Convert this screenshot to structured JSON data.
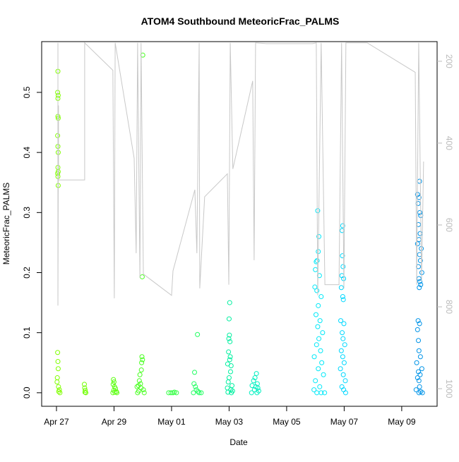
{
  "chart_data": {
    "type": "scatter",
    "title": "ATOM4 Southbound MeteoricFrac_PALMS",
    "xlabel": "Date",
    "ylabel": "MeteoricFrac_PALMS",
    "xlim": [
      -0.515,
      13.23
    ],
    "ylim": [
      -0.0225,
      0.5845
    ],
    "y2lim": [
      1043,
      152
    ],
    "xticks": [
      {
        "value": 0,
        "label": "Apr 27"
      },
      {
        "value": 2,
        "label": "Apr 29"
      },
      {
        "value": 4,
        "label": "May 01"
      },
      {
        "value": 6,
        "label": "May 03"
      },
      {
        "value": 8,
        "label": "May 05"
      },
      {
        "value": 10,
        "label": "May 07"
      },
      {
        "value": 12,
        "label": "May 09"
      }
    ],
    "yticks": [
      {
        "value": 0,
        "label": "0.0"
      },
      0.1,
      0.2,
      0.3,
      0.4,
      0.5
    ],
    "y2ticks": [
      200,
      400,
      600,
      800,
      1000
    ],
    "series": [
      {
        "color": "#80ff00",
        "x": [
          0.05,
          0.04,
          0.06,
          0.05,
          0.05,
          0.06,
          0.04,
          0.05,
          0.06,
          0.05,
          0.06,
          0.04,
          0.05,
          0.06,
          0.04,
          0.05,
          0.06,
          0.03,
          0.02,
          0.07,
          0.1,
          0.08,
          0.12
        ],
        "values": [
          0.535,
          0.5,
          0.495,
          0.49,
          0.46,
          0.457,
          0.428,
          0.41,
          0.4,
          0.375,
          0.368,
          0.365,
          0.36,
          0.345,
          0.067,
          0.052,
          0.04,
          0.025,
          0.018,
          0.01,
          0.005,
          0.002,
          0
        ]
      },
      {
        "color": "#70ff00",
        "x": [
          0.97,
          0.98,
          1.0,
          0.99,
          1.02
        ],
        "values": [
          0.014,
          0.008,
          0.004,
          0.001,
          0
        ]
      },
      {
        "color": "#5cff10",
        "x": [
          1.98,
          2.0,
          1.97,
          2.02,
          2.05,
          1.99,
          2.08,
          1.96,
          2.1,
          2.03
        ],
        "values": [
          0.022,
          0.018,
          0.014,
          0.01,
          0.007,
          0.004,
          0.002,
          0,
          0,
          0.001
        ]
      },
      {
        "color": "#48ff20",
        "x": [
          3.0,
          2.98,
          2.97,
          2.99,
          2.96,
          2.95,
          2.9,
          2.88,
          2.92,
          2.85,
          2.8,
          2.94,
          3.02,
          2.86,
          2.82,
          3.05
        ],
        "values": [
          0.562,
          0.193,
          0.06,
          0.055,
          0.05,
          0.038,
          0.03,
          0.02,
          0.015,
          0.012,
          0.01,
          0.008,
          0.005,
          0.003,
          0,
          0
        ]
      },
      {
        "color": "#30ff40",
        "x": [
          3.9,
          3.98,
          4.05,
          4.1,
          4.17
        ],
        "values": [
          0,
          0,
          0,
          0.001,
          0
        ]
      },
      {
        "color": "#20ff60",
        "x": [
          4.9,
          4.8,
          4.78,
          4.83,
          4.86,
          4.92,
          4.76,
          4.96,
          5.03
        ],
        "values": [
          0.097,
          0.034,
          0.015,
          0.01,
          0.005,
          0.002,
          0,
          0,
          0
        ]
      },
      {
        "color": "#00f0a0",
        "x": [
          6.02,
          6.0,
          6.01,
          5.99,
          6.03,
          5.98,
          6.04,
          6.02,
          5.95,
          6.07,
          6.05,
          6.0,
          5.97,
          6.1,
          5.94,
          6.06,
          6.12,
          5.96,
          6.08
        ],
        "values": [
          0.15,
          0.123,
          0.096,
          0.09,
          0.085,
          0.068,
          0.06,
          0.055,
          0.048,
          0.045,
          0.035,
          0.025,
          0.018,
          0.012,
          0.008,
          0.005,
          0.003,
          0.001,
          0
        ]
      },
      {
        "color": "#00f0c0",
        "x": [
          6.95,
          6.9,
          6.85,
          6.98,
          6.8,
          6.93,
          7.0,
          6.88,
          7.03,
          6.78,
          6.97
        ],
        "values": [
          0.032,
          0.025,
          0.02,
          0.015,
          0.012,
          0.01,
          0.008,
          0.005,
          0.003,
          0,
          0
        ]
      },
      {
        "color": "#00e8f8",
        "x": [
          9.08,
          9.12,
          9.1,
          9.06,
          9.03,
          9.0,
          9.14,
          8.98,
          9.05,
          9.2,
          9.1,
          9.02,
          9.16,
          9.08,
          9.25,
          9.12,
          9.04,
          9.18,
          8.96,
          9.22,
          9.1,
          9.28,
          9.0,
          9.15,
          8.95,
          9.05,
          9.2,
          9.32
        ],
        "values": [
          0.303,
          0.26,
          0.235,
          0.22,
          0.218,
          0.205,
          0.195,
          0.176,
          0.17,
          0.16,
          0.145,
          0.13,
          0.12,
          0.11,
          0.1,
          0.09,
          0.08,
          0.07,
          0.06,
          0.05,
          0.04,
          0.03,
          0.02,
          0.01,
          0.005,
          0,
          0,
          0
        ]
      },
      {
        "color": "#00d8ff",
        "x": [
          9.95,
          9.93,
          9.94,
          9.96,
          9.92,
          9.98,
          9.9,
          9.95,
          9.97,
          9.88,
          9.99,
          9.93,
          9.96,
          10.02,
          9.9,
          9.95,
          10.0,
          9.87,
          9.97,
          10.04,
          9.92,
          9.98,
          10.05
        ],
        "values": [
          0.278,
          0.27,
          0.228,
          0.21,
          0.195,
          0.19,
          0.175,
          0.16,
          0.155,
          0.12,
          0.115,
          0.1,
          0.09,
          0.08,
          0.07,
          0.06,
          0.05,
          0.04,
          0.03,
          0.02,
          0.01,
          0.005,
          0
        ]
      },
      {
        "color": "#0094e8",
        "x": [
          12.62,
          12.55,
          12.6,
          12.57,
          12.63,
          12.66,
          12.58,
          12.64,
          12.6,
          12.55,
          12.68,
          12.62,
          12.65,
          12.58,
          12.7,
          12.6,
          12.63,
          12.66,
          12.61,
          12.57,
          12.62,
          12.55,
          12.58,
          12.6,
          12.65,
          12.52,
          12.7,
          12.58,
          12.64,
          12.55,
          12.6,
          12.62,
          12.5,
          12.66,
          12.6,
          12.72
        ],
        "values": [
          0.352,
          0.33,
          0.325,
          0.315,
          0.3,
          0.295,
          0.28,
          0.265,
          0.255,
          0.248,
          0.24,
          0.23,
          0.22,
          0.21,
          0.2,
          0.19,
          0.185,
          0.18,
          0.175,
          0.12,
          0.115,
          0.105,
          0.087,
          0.07,
          0.06,
          0.05,
          0.04,
          0.035,
          0.03,
          0.025,
          0.02,
          0.01,
          0.005,
          0.002,
          0,
          0
        ]
      },
      {
        "type": "line",
        "axis": "y2",
        "color": "#c8c8c8",
        "x": [
          0.05,
          0.05,
          0.07,
          0.07,
          0.98,
          0.98,
          1.96,
          2.01,
          2.04,
          2.7,
          2.77,
          2.82,
          2.9,
          2.94,
          3.02,
          4.0,
          4.05,
          4.81,
          4.88,
          4.96,
          4.98,
          5.15,
          5.94,
          5.99,
          6.04,
          6.13,
          6.82,
          6.87,
          6.92,
          7.3,
          8.9,
          9.03,
          9.08,
          9.2,
          9.33,
          9.82,
          9.91,
          9.99,
          10.06,
          10.8,
          12.47,
          12.52,
          12.59,
          12.69,
          12.76
        ],
        "values": [
          155,
          797,
          308,
          490,
          490,
          155,
          222,
          779,
          155,
          437,
          669,
          155,
          729,
          155,
          720,
          772,
          712,
          514,
          669,
          155,
          755,
          531,
          475,
          746,
          155,
          463,
          248,
          686,
          155,
          157,
          157,
          155,
          772,
          155,
          746,
          746,
          155,
          755,
          155,
          155,
          227,
          746,
          155,
          737,
          445
        ]
      }
    ]
  }
}
